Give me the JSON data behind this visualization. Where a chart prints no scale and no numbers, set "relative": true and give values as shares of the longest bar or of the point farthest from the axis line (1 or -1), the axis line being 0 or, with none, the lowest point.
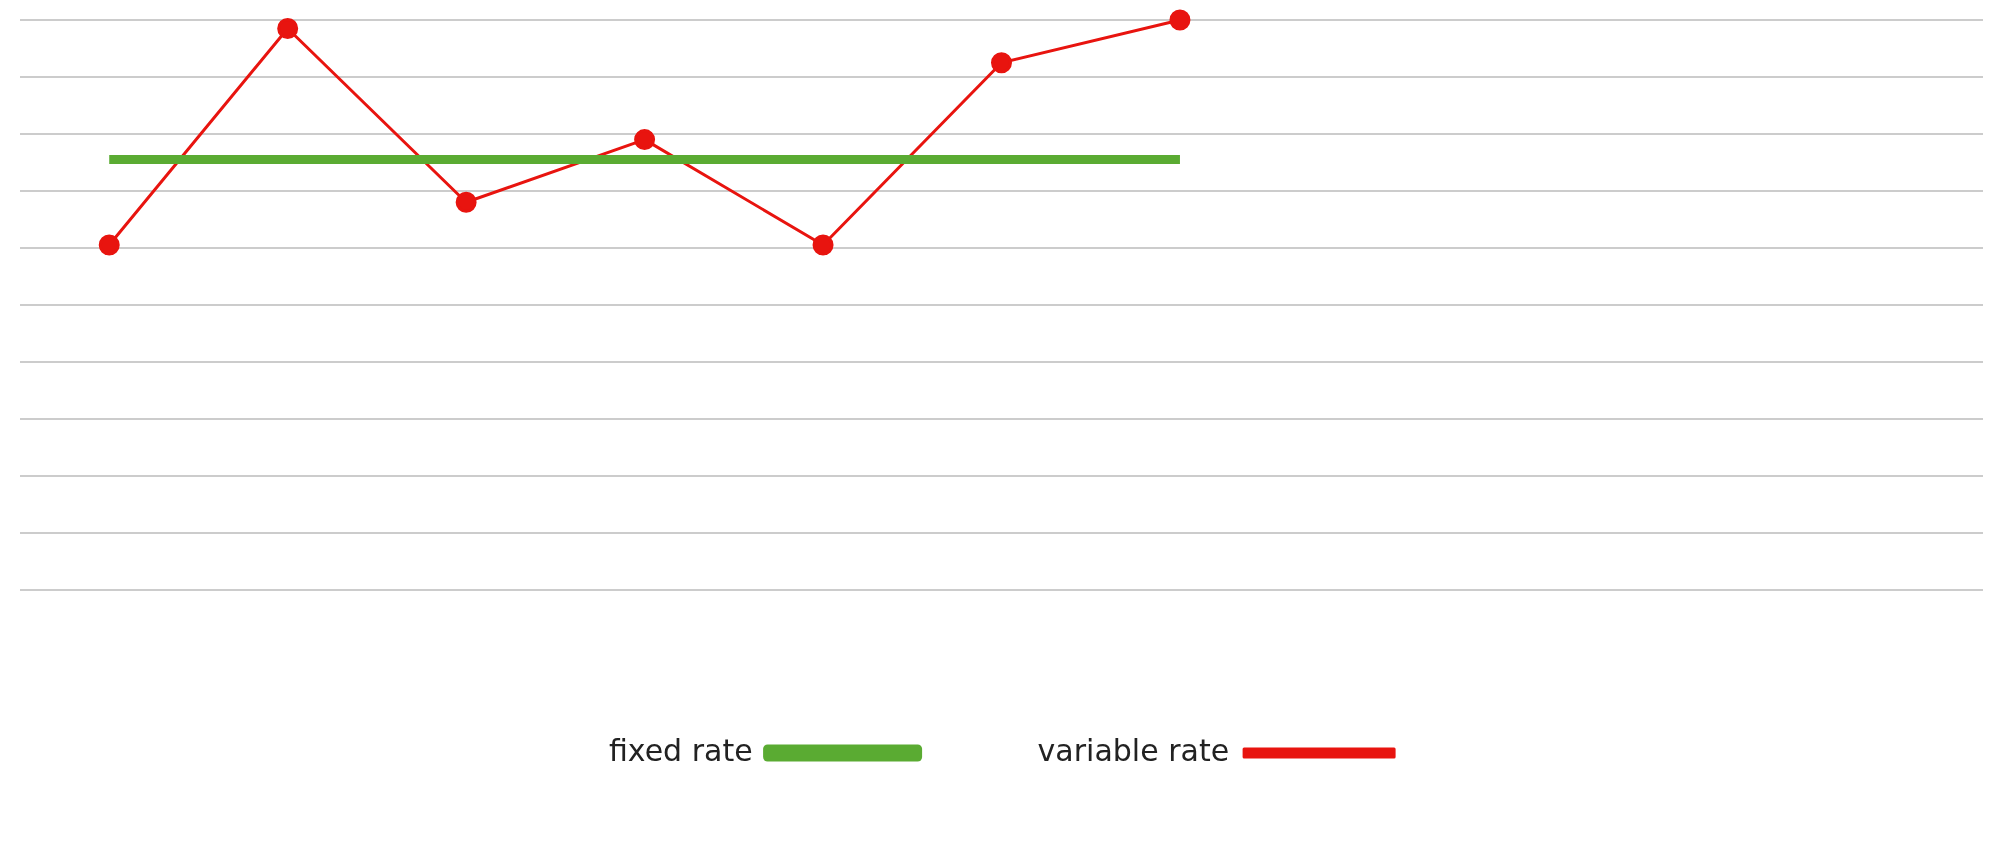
{
  "chart_data": {
    "type": "line",
    "relative": true,
    "grid": "y",
    "legend": "bottom",
    "categories": [
      null,
      null,
      null,
      null,
      null,
      null,
      null,
      null,
      null,
      null,
      null
    ],
    "series": [
      {
        "name": "fixed rate",
        "color": "#5aab32",
        "marker": "none",
        "values": [
          0.755,
          0.755,
          0.755,
          0.755,
          0.755,
          0.755,
          0.755,
          null,
          null,
          null,
          null
        ]
      },
      {
        "name": "variable rate",
        "color": "#e8140f",
        "marker": "circle",
        "values": [
          0.605,
          0.985,
          0.68,
          0.79,
          0.605,
          0.925,
          1,
          null,
          null,
          null,
          null
        ]
      }
    ]
  }
}
